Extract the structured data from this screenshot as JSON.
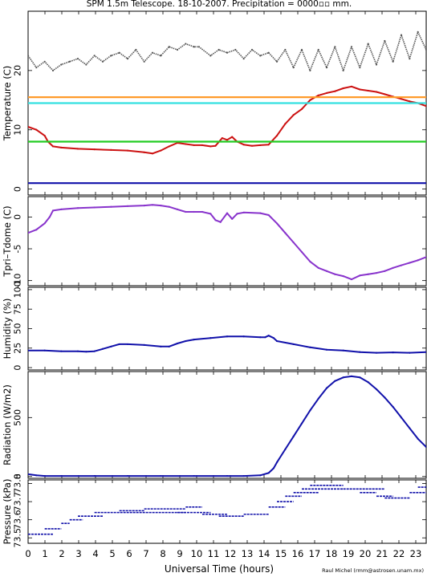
{
  "title": "SPM 1.5m Telescope. 18-10-2007. Precipitation = 0000▫▫ mm.",
  "xlabel": "Universal Time (hours)",
  "credit": "Raul Michel (rmm@astrosen.unam.mx)",
  "x_ticks": [
    "0",
    "1",
    "2",
    "3",
    "4",
    "5",
    "6",
    "7",
    "8",
    "9",
    "10",
    "11",
    "12",
    "13",
    "14",
    "15",
    "16",
    "17",
    "18",
    "19",
    "20",
    "21",
    "22",
    "23"
  ],
  "colors": {
    "gray": "#555555",
    "red": "#cc1111",
    "orange": "#ff9a2a",
    "cyan": "#33e0e0",
    "green": "#22cc22",
    "blue": "#1111aa",
    "purple": "#8833cc"
  },
  "chart_data": [
    {
      "type": "line",
      "ylabel": "Temperature (C)",
      "xlim": [
        0,
        24
      ],
      "ylim": [
        -1,
        30
      ],
      "y_ticks": [
        0,
        10,
        20
      ],
      "series": [
        {
          "color_key": "gray",
          "style": "scatter-line",
          "x": [
            0,
            0.5,
            1,
            1.5,
            2,
            2.5,
            3,
            3.5,
            4,
            4.5,
            5,
            5.5,
            6,
            6.5,
            7,
            7.5,
            8,
            8.5,
            9,
            9.5,
            10,
            10.3,
            11,
            11.5,
            12,
            12.5,
            13,
            13.5,
            14,
            14.5,
            15,
            15.5,
            16,
            16.5,
            17,
            17.5,
            18,
            18.5,
            19,
            19.5,
            20,
            20.5,
            21,
            21.5,
            22,
            22.5,
            23,
            23.5,
            24
          ],
          "y": [
            22.5,
            20.5,
            21.5,
            20.0,
            21.0,
            21.5,
            22.0,
            21.0,
            22.5,
            21.5,
            22.5,
            23.0,
            22.0,
            23.5,
            21.5,
            23.0,
            22.5,
            24.0,
            23.5,
            24.5,
            24.0,
            24.0,
            22.5,
            23.5,
            23.0,
            23.5,
            22.0,
            23.5,
            22.5,
            23.0,
            21.5,
            23.5,
            20.5,
            23.5,
            20.0,
            23.5,
            20.5,
            24.0,
            20.0,
            24.0,
            20.5,
            24.5,
            21.0,
            25.0,
            21.5,
            26.0,
            22.0,
            26.5,
            23.5
          ]
        },
        {
          "color_key": "red",
          "style": "line",
          "x": [
            0,
            0.5,
            1,
            1.2,
            1.5,
            2,
            3,
            4,
            5,
            6,
            7,
            7.5,
            8,
            8.5,
            9,
            9.5,
            10,
            10.5,
            11,
            11.3,
            11.7,
            12,
            12.3,
            12.6,
            13,
            13.5,
            14,
            14.5,
            15,
            15.5,
            16,
            16.5,
            17,
            17.5,
            18,
            18.5,
            19,
            19.5,
            20,
            20.5,
            21,
            21.5,
            22,
            22.5,
            23,
            23.5,
            24
          ],
          "y": [
            10.5,
            10.0,
            9.0,
            8.0,
            7.2,
            7.0,
            6.8,
            6.7,
            6.6,
            6.5,
            6.2,
            6.0,
            6.5,
            7.2,
            7.8,
            7.6,
            7.4,
            7.4,
            7.2,
            7.3,
            8.6,
            8.3,
            8.8,
            8.0,
            7.5,
            7.3,
            7.4,
            7.5,
            9.0,
            11.0,
            12.5,
            13.5,
            15.0,
            15.8,
            16.2,
            16.5,
            17.0,
            17.3,
            16.8,
            16.6,
            16.4,
            16.0,
            15.6,
            15.2,
            14.8,
            14.5,
            14.0
          ]
        },
        {
          "color_key": "orange",
          "style": "hline",
          "x": [
            0,
            24
          ],
          "y": [
            15.5,
            15.5
          ]
        },
        {
          "color_key": "cyan",
          "style": "hline",
          "x": [
            0,
            24
          ],
          "y": [
            14.5,
            14.5
          ]
        },
        {
          "color_key": "green",
          "style": "hline",
          "x": [
            0,
            24
          ],
          "y": [
            8.0,
            8.0
          ]
        },
        {
          "color_key": "blue",
          "style": "hline",
          "x": [
            0,
            24
          ],
          "y": [
            1.0,
            1.0
          ]
        }
      ]
    },
    {
      "type": "line",
      "ylabel": "Tpri–Tdome (C)",
      "xlim": [
        0,
        24
      ],
      "ylim": [
        -10.8,
        3.2
      ],
      "y_ticks": [
        0,
        -5,
        -10
      ],
      "series": [
        {
          "color_key": "purple",
          "style": "line",
          "x": [
            0,
            0.5,
            1,
            1.3,
            1.5,
            2,
            3,
            4,
            5,
            6,
            7,
            7.5,
            8,
            8.5,
            9,
            9.5,
            10,
            10.5,
            11,
            11.3,
            11.6,
            12,
            12.3,
            12.6,
            13,
            14,
            14.5,
            15,
            15.5,
            16,
            16.5,
            17,
            17.5,
            18,
            18.5,
            19,
            19.5,
            20,
            20.5,
            21,
            21.5,
            22,
            22.5,
            23,
            23.5,
            24
          ],
          "y": [
            -2.5,
            -2.0,
            -1.0,
            0.0,
            1.0,
            1.2,
            1.4,
            1.5,
            1.6,
            1.7,
            1.8,
            1.9,
            1.8,
            1.6,
            1.2,
            0.8,
            0.8,
            0.8,
            0.5,
            -0.5,
            -0.8,
            0.6,
            -0.3,
            0.5,
            0.7,
            0.6,
            0.3,
            -1.0,
            -2.5,
            -4.0,
            -5.5,
            -7.0,
            -8.0,
            -8.5,
            -9.0,
            -9.3,
            -9.8,
            -9.2,
            -9.0,
            -8.8,
            -8.5,
            -8.0,
            -7.6,
            -7.2,
            -6.8,
            -6.3
          ]
        }
      ]
    },
    {
      "type": "line",
      "ylabel": "Humidity (%)",
      "xlim": [
        0,
        24
      ],
      "ylim": [
        -3,
        103
      ],
      "y_ticks": [
        0,
        25,
        50,
        75,
        100
      ],
      "series": [
        {
          "color_key": "blue",
          "style": "line",
          "x": [
            0,
            1,
            2,
            3,
            3.5,
            4,
            4.5,
            5,
            5.5,
            6,
            7,
            8,
            8.5,
            9,
            9.5,
            10,
            11,
            12,
            13,
            14,
            14.3,
            14.5,
            14.8,
            15,
            16,
            17,
            18,
            19,
            20,
            21,
            22,
            23,
            24
          ],
          "y": [
            22,
            22,
            21,
            21,
            20.5,
            21,
            24,
            27,
            30,
            30,
            29,
            27,
            27,
            31,
            34,
            36,
            38,
            40,
            40,
            39,
            39,
            41,
            38,
            34,
            30,
            26,
            23,
            22,
            20,
            19,
            19.5,
            19,
            20
          ]
        }
      ]
    },
    {
      "type": "line",
      "ylabel": "Radiation (W/m2)",
      "xlim": [
        0,
        24
      ],
      "ylim": [
        -15,
        890
      ],
      "y_ticks": [
        0,
        500
      ],
      "series": [
        {
          "color_key": "blue",
          "style": "line",
          "x": [
            0,
            0.5,
            1,
            2,
            4,
            6,
            8,
            10,
            12,
            13,
            14,
            14.5,
            14.8,
            15,
            15.5,
            16,
            16.5,
            17,
            17.5,
            18,
            18.5,
            19,
            19.5,
            20,
            20.5,
            21,
            21.5,
            22,
            22.5,
            23,
            23.5,
            24
          ],
          "y": [
            20,
            10,
            5,
            5,
            5,
            5,
            5,
            5,
            5,
            5,
            10,
            30,
            70,
            120,
            230,
            340,
            450,
            560,
            660,
            750,
            810,
            840,
            850,
            840,
            800,
            740,
            670,
            590,
            500,
            410,
            320,
            250
          ]
        }
      ]
    },
    {
      "type": "scatter",
      "ylabel": "Pressure (kPa)",
      "xlim": [
        0,
        24
      ],
      "ylim": [
        73.47,
        73.82
      ],
      "y_ticks": [
        "73.5",
        "73.6",
        "73.7",
        "73.8"
      ],
      "series": [
        {
          "color_key": "blue",
          "style": "steps",
          "segments": [
            [
              0.0,
              1.5,
              73.52
            ],
            [
              1.0,
              2.0,
              73.55
            ],
            [
              2.0,
              2.5,
              73.58
            ],
            [
              2.5,
              3.3,
              73.6
            ],
            [
              3.0,
              4.5,
              73.62
            ],
            [
              4.0,
              9.5,
              73.64
            ],
            [
              5.5,
              7.0,
              73.65
            ],
            [
              7.0,
              9.5,
              73.66
            ],
            [
              9.0,
              11.0,
              73.64
            ],
            [
              9.5,
              10.5,
              73.67
            ],
            [
              10.5,
              12.0,
              73.63
            ],
            [
              11.5,
              13.0,
              73.62
            ],
            [
              13.0,
              14.5,
              73.63
            ],
            [
              14.5,
              15.5,
              73.67
            ],
            [
              15.0,
              16.0,
              73.7
            ],
            [
              15.5,
              16.5,
              73.73
            ],
            [
              16.0,
              17.5,
              73.75
            ],
            [
              16.5,
              19.0,
              73.77
            ],
            [
              17.0,
              19.0,
              73.79
            ],
            [
              19.0,
              21.5,
              73.77
            ],
            [
              20.0,
              21.0,
              73.75
            ],
            [
              21.0,
              22.0,
              73.73
            ],
            [
              21.5,
              23.0,
              73.72
            ],
            [
              23.0,
              24.0,
              73.75
            ],
            [
              23.5,
              24.0,
              73.78
            ]
          ]
        }
      ]
    }
  ]
}
